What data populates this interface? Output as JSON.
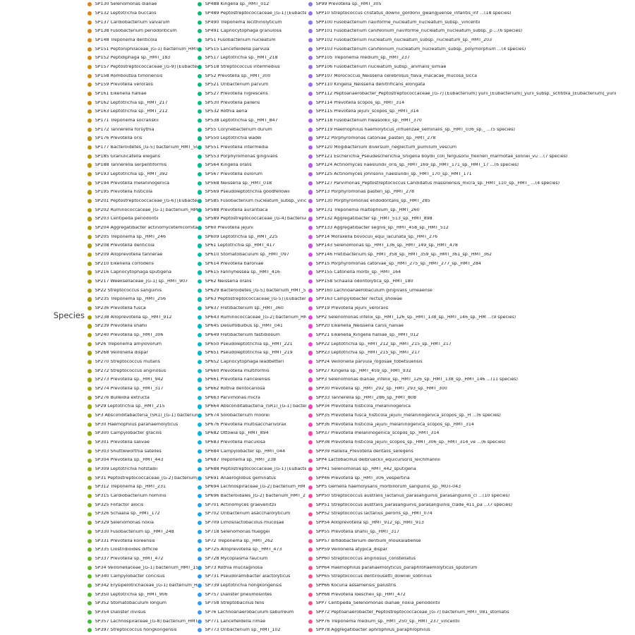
{
  "colors": {
    "background": "#ffffff",
    "label_text": "#1c1c1c",
    "title_text": "#3c3c3c"
  },
  "chart_data": {
    "type": "legend",
    "title": "Species",
    "layout": {
      "columns": 3,
      "rows_per_column": 71,
      "marker": "circle",
      "marker_palette": "rainbow gradient across all entries"
    },
    "marker_color_anchors": [
      {
        "i": 0,
        "color": "#DE831C"
      },
      {
        "i": 17,
        "color": "#BC9414"
      },
      {
        "i": 35,
        "color": "#AB9D12"
      },
      {
        "i": 52,
        "color": "#95AC18"
      },
      {
        "i": 62,
        "color": "#6BB52A"
      },
      {
        "i": 70,
        "color": "#44B93C"
      },
      {
        "i": 71,
        "color": "#17B470"
      },
      {
        "i": 88,
        "color": "#13B68C"
      },
      {
        "i": 105,
        "color": "#14B7B4"
      },
      {
        "i": 117,
        "color": "#17B3D2"
      },
      {
        "i": 129,
        "color": "#2BA0E2"
      },
      {
        "i": 141,
        "color": "#4C96EC"
      },
      {
        "i": 142,
        "color": "#9078E2"
      },
      {
        "i": 158,
        "color": "#AC66DE"
      },
      {
        "i": 176,
        "color": "#DC50D8"
      },
      {
        "i": 192,
        "color": "#F04FA8"
      },
      {
        "i": 212,
        "color": "#F25C86"
      }
    ],
    "columns": [
      [
        "SP130 Selenomonas dianae",
        "SP132 Leptotrichia buccalis",
        "SP137 Cardiobacterium valvarum",
        "SP138 Fusobacterium periodonticum",
        "SP148 Treponema denticola",
        "SP151 Peptoniphilaceae_[G-1] bacterium_HMT_113",
        "SP152 Peptidiphaga sp._HMT_183",
        "SP157 Peptostreptococcaceae_[G-9] [Eubacterium]_brachy",
        "SP158 Romboutsia timonensis",
        "SP159 Prevotella veroralis",
        "SP161 Eikenella halliae",
        "SP162 Leptotrichia sp._HMT_217",
        "SP163 Leptotrichia sp._HMT_212",
        "SP171 Treponema socranskii",
        "SP172 Tannerella forsythia",
        "SP176 Prevotella oris",
        "SP177 Bacteroidetes_[G-5] bacterium_HMT_505",
        "SP185 Granulicatella elegans",
        "SP188 Tannerella serpentiformis",
        "SP193 Leptotrichia sp._HMT_392",
        "SP194 Prevotella melaninogenica",
        "SP195 Prevotella histicola",
        "SP201 Peptostreptococcaceae_[G-6] [Eubacterium]_nodatum",
        "SP202 Ruminococcaceae_[G-1] bacterium_HMT_075",
        "SP203 Centipeda periodontii",
        "SP204 Aggregatibacter actinomycetemcomitans",
        "SP205 Treponema sp._HMT_246",
        "SP208 Prevotella denticola",
        "SP209 Alloprevotella tannerae",
        "SP210 Eikenella corrodens",
        "SP216 Capnocytophaga sputigena",
        "SP217 Weeksellaceae_[G-1] sp._HMT_907",
        "SP22 Streptococcus sanguinis",
        "SP235 Treponema sp._HMT_256",
        "SP236 Prevotella fusca",
        "SP238 Alloprevotella sp._HMT_912",
        "SP239 Prevotella shahii",
        "SP240 Prevotella sp._HMT_306",
        "SP26 Treponema amylovorum",
        "SP268 Veillonella dispar",
        "SP270 Streptococcus mutans",
        "SP272 Streptococcus anginosus",
        "SP273 Prevotella sp._HMT_942",
        "SP274 Prevotella sp._HMT_317",
        "SP276 Bulleidia extructa",
        "SP29 Leptotrichia sp._HMT_215",
        "SP3 Absconditabacteria_(SR1)_[G-1] bacterium_HMT_874",
        "SP30 Haemophilus parahaemolyticus",
        "SP300 Campylobacter gracilis",
        "SP301 Prevotella salivae",
        "SP303 Shuttleworthia satelles",
        "SP304 Prevotella sp._HMT_443",
        "SP309 Leptotrichia hofstadii",
        "SP31 Peptostreptococcaceae_[G-2] bacterium_HMT_091",
        "SP312 Treponema sp._HMT_231",
        "SP315 Cardiobacterium hominis",
        "SP325 Filifactor alocis",
        "SP326 Schaalia sp._HMT_172",
        "SP329 Selenomonas noxia",
        "SP330 Fusobacterium sp._HMT_248",
        "SP331 Prevotella koreensis",
        "SP335 Clostridioides difficile",
        "SP337 Prevotella sp._HMT_472",
        "SP34 Veillonellaceae_[G-1] bacterium_HMT_155",
        "SP340 Campylobacter concisus",
        "SP342 Erysipelotrichaceae_[G-1] bacterium_HMT_905",
        "SP350 Leptotrichia sp._HMT_906",
        "SP352 Stomatobaculum longum",
        "SP354 Dialister invisus",
        "SP357 Lachnospiraceae_[G-8] bacterium_HMT_500",
        "SP397 Streptococcus hongkongensis"
      ],
      [
        "SP488 Kingella sp._HMT_012",
        "SP489 Peptostreptococcaceae_[G-1] [Eubacterium]_sulci",
        "SP490 Treponema lecithinolyticum",
        "SP491 Capnocytophaga granulosa",
        "SP51 Fusobacterium nucleatum",
        "SP515 Lancefieldella parvula",
        "SP517 Leptotrichia sp._HMT_218",
        "SP518 Streptococcus intermedius",
        "SP52 Prevotella sp._HMT_300",
        "SP521 Oribacterium parvum",
        "SP527 Prevotella nigrescens",
        "SP530 Prevotella pallens",
        "SP532 Rothia aeria",
        "SP538 Leptotrichia sp._HMT_847",
        "SP55 Corynebacterium durum",
        "SP550 Leptotrichia wadei",
        "SP551 Prevotella intermedia",
        "SP553 Porphyromonas gingivalis",
        "SP564 Kingella oralis",
        "SP567 Prevotella oulorum",
        "SP568 Neisseria sp._HMT_018",
        "SP569 Pseudoleptotrichia goodfellowii",
        "SP585 Fusobacterium nucleatum_subsp._vincentii",
        "SP588 Prevotella aurantiaca",
        "SP589 Peptostreptococcaceae_[G-4] bacterium_HMT_369",
        "SP60 Prevotella jejuni",
        "SP609 Leptotrichia sp._HMT_225",
        "SP61 Leptotrichia sp._HMT_417",
        "SP610 Stomatobaculum sp._HMT_097",
        "SP614 Prevotella baroniae",
        "SP615 Fannyhessea sp._HMT_416",
        "SP62 Neisseria oralis",
        "SP629 Bacteroidetes_[G-5] bacterium_HMT_511",
        "SP63 Peptostreptococcaceae_[G-5] [Eubacterium]_saphenum",
        "SP637 Fretibacterium sp._HMT_360",
        "SP643 Ruminococcaceae_[G-2] bacterium_HMT_085",
        "SP645 Desulfobulbus sp._HMT_041",
        "SP649 Fretibacterium fastidiosum",
        "SP650 Pseudoleptotrichia sp._HMT_221",
        "SP651 Pseudoleptotrichia sp._HMT_219",
        "SP652 Capnocytophaga leadbetteri",
        "SP660 Prevotella multiformis",
        "SP661 Prevotella nanceiensis",
        "SP662 Rothia dentocariosa",
        "SP663 Parvimonas micra",
        "SP664 Absconditabacteria_(SR1)_[G-1] bacterium_HMT_875",
        "SP674 Solobacterium moorei",
        "SP676 Prevotella multisaccharivorax",
        "SP682 Ottowia sp._HMT_894",
        "SP683 Prevotella maculosa",
        "SP684 Campylobacter sp._HMT_044",
        "SP687 Treponema sp._HMT_238",
        "SP688 Peptostreptococcaceae_[G-1] [Eubacterium]_infirmum",
        "SP691 Anaeroglobus geminatus",
        "SP694 Lachnospiraceae_[G-2] bacterium_HMT_088",
        "SP696 Bacteroidales_[G-2] bacterium_HMT_274",
        "SP701 Actinomyces graevenitzii",
        "SP702 Oribacterium asaccharolyticum",
        "SP709 Limosilactobacillus mucosae",
        "SP718 Selenomonas flueggei",
        "SP72 Treponema sp._HMT_262",
        "SP725 Alloprevotella sp._HMT_473",
        "SP728 Mycoplasma faucium",
        "SP73 Rothia mucilaginosa",
        "SP731 Pseudoramibacter alactolyticus",
        "SP739 Leptotrichia hongkongensis",
        "SP757 Dialister pneumosintes",
        "SP758 Streptobacillus felis",
        "SP76 Lachnoanaerobaculum saburreum",
        "SP771 Lancefieldella rimae",
        "SP773 Oribacterium sp._HMT_102"
      ],
      [
        "SP99 Prevotella sp._HMT_305",
        "SPP10 Streptococcus cristatus_downii_gordonii_gwangjuense_infantis_inf ...(18 species)",
        "SPP100 Fusobacterium naviforme_nucleatum_nucleatum_subsp._vincentii",
        "SPP101 Fusobacterium canifelinum_naviforme_nucleatum_nucleatum_subsp._p ...(6 species)",
        "SPP102 Fusobacterium nucleatum_nucleatum_subsp._nucleatum_sp._HMT_203",
        "SPP103 Fusobacterium canifelinum_nucleatum_nucleatum_subsp._polymorphum ...(4 species)",
        "SPP105 Treponema medium_sp._HMT_237",
        "SPP106 Fusobacterium nucleatum_subsp._animalis_simiae",
        "SPP107 Morococcus_Neisseria cerebrosus_flava_macacae_mucosa_sicca",
        "SPP110 Kingella_Neisseria denitrificans_elongata",
        "SPP112 Peptoanaerobacter_Peptostreptococcaceae_[G-7] [Eubacterium] yurii_[Eubacterium]_yurii_subsp._schtitka_[Eubacterium]_yurii_subsps._yurii_&_margaretiae",
        "SPP114 Prevotella scopos_sp._HMT_314",
        "SPP115 Prevotella jejuni_scopos_sp._HMT_314",
        "SPP118 Fusobacterium hwasookii_sp._HMT_370",
        "SPP119 Haemophilus haemolyticus_influenzae_seminalis_sp._HMT_036_sp._ ...(5 species)",
        "SPP12 Porphyromonas catoniae_pasteri_sp._HMT_278",
        "SPP120 Mogibacterium diversum_neglectum_pumilum_vescum",
        "SPP121 Escherichia_Pseudescherichia_Shigella boydii_coli_fergusonii_flexneri_marmotae_sonnei_vu ...(7 species)",
        "SPP124 Actinomyces naeslundii_oris_sp._HMT_169_sp._HMT_171_sp._HMT_17 ...(6 species)",
        "SPP125 Actinomyces johnsonii_naeslundii_sp._HMT_170_sp._HMT_171",
        "SPP127 Parvimonas_Peptostreptococcus Candidatus massiliensis_micra_sp._HMT_110_sp._HMT_ ...(4 species)",
        "SPP13 Porphyromonas pasteri_sp._HMT_278",
        "SPP130 Porphyromonas endodontalis_sp._HMT_285",
        "SPP131 Treponema maltophilum_sp._HMT_260",
        "SPP132 Aggregatibacter sp._HMT_513_sp._HMT_898",
        "SPP133 Aggregatibacter segnis_sp._HMT_458_sp._HMT_512",
        "SPP14 Moraxella bovoculi_equi_lacunata_sp._HMT_276",
        "SPP143 Selenomonas sp._HMT_136_sp._HMT_149_sp._HMT_478",
        "SPP146 Fretibacterium sp._HMT_358_sp._HMT_359_sp._HMT_361_sp._HMT_362",
        "SPP15 Porphyromonas catoniae_sp._HMT_275_sp._HMT_277_sp._HMT_284",
        "SPP155 Catonella morbi_sp._HMT_164",
        "SPP158 Schaalia odontolytica_sp._HMT_180",
        "SPP160 Lachnoanaerobaculum gingivalis_umeaense",
        "SPP163 Campylobacter rectus_showae",
        "SPP19 Prevotella jejuni_veroralis",
        "SPP2 Selenomonas infelix_sp._HMT_126_sp._HMT_138_sp._HMT_146_sp._HM ...(9 species)",
        "SPP20 Eikenella_Neisseria canis_halliae",
        "SPP21 Eikenella_Kingella halliae_sp._HMT_012",
        "SPP22 Leptotrichia sp._HMT_212_sp._HMT_215_sp._HMT_217",
        "SPP23 Leptotrichia sp._HMT_215_sp._HMT_217",
        "SPP24 Veillonella parvula_rogosae_tobetsuensis",
        "SPP27 Kingella sp._HMT_459_sp._HMT_932",
        "SPP3 Selenomonas dianae_infelix_sp._HMT_126_sp._HMT_138_sp._HMT_146 ...(11 species)",
        "SPP30 Prevotella sp._HMT_292_sp._HMT_293_sp._HMT_300",
        "SPP33 Tannerella sp._HMT_286_sp._HMT_808",
        "SPP34 Prevotella histicola_melaninogenica",
        "SPP35 Prevotella fusca_histicola_jejuni_melaninogenica_scopos_sp._H ...(6 species)",
        "SPP36 Prevotella histicola_jejuni_melaninogenica_scopos_sp._HMT_314",
        "SPP37 Prevotella melaninogenica_scopos_sp._HMT_314",
        "SPP38 Prevotella histicola_jejuni_scopos_sp._HMT_306_sp._HMT_314_ve ...(6 species)",
        "SPP39 Hallella_Prevotella dentalis_seregens",
        "SPP4 Lactobacillus delbrueckii_equicursoris_leichmannii",
        "SPP41 Selenomonas sp._HMT_442_sputigena",
        "SPP46 Prevotella sp._HMT_306_vespertina",
        "SPP5 Gemella haemolysans_morbillorum_sanguinis_sp._MOT-043",
        "SPP50 Streptococcus australis_lactarius_parasanguinis_parasanguinis_cl ...(10 species)",
        "SPP51 Streptococcus australis_parasanguinis_parasanguinis_clade_411_pa ...(7 species)",
        "SPP52 Streptococcus lactarius_peroris_sp._HMT_074",
        "SPP54 Alloprevotella sp._HMT_912_sp._HMT_913",
        "SPP55 Prevotella shahii_sp._HMT_317",
        "SPP57 Bifidobacterium dentium_moukalabense",
        "SPP59 Veillonella atypica_dispar",
        "SPP60 Streptococcus anginosus_constellatus",
        "SPP64 Haemophilus parahaemolyticus_paraphrohaemolyticus_sputorum",
        "SPP65 Streptococcus dentirousetti_downei_sobrinus",
        "SPP66 Kocuria assamensis_palustris",
        "SPP68 Prevotella loescheii_sp._HMT_472",
        "SPP7 Centipeda_Selenomonas dianae_noxia_periodontii",
        "SPP72 Peptoanaerobacter_Peptostreptococcaceae_[G-7] bacterium_HMT_081_stomatis",
        "SPP76 Treponema medium_sp._HMT_250_sp._HMT_237_vincentii",
        "SPP78 Aggregatibacter aphrophilus_paraphrophilus"
      ]
    ]
  }
}
